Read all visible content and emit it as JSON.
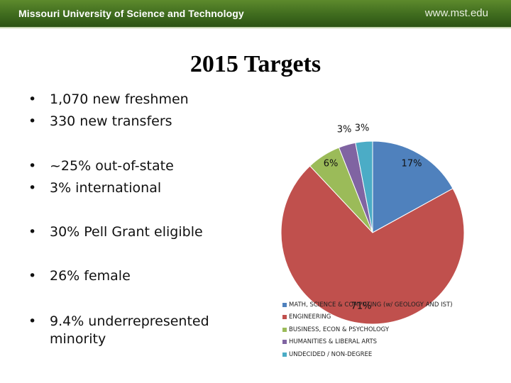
{
  "header": {
    "institution": "Missouri University of Science and Technology",
    "url": "www.mst.edu"
  },
  "slide": {
    "title": "2015 Targets",
    "bullets": [
      "1,070 new freshmen",
      "330 new transfers",
      "~25% out-of-state",
      "3% international",
      "30% Pell Grant eligible",
      "26% female",
      "9.4% underrepresented minority"
    ]
  },
  "chart_data": {
    "type": "pie",
    "title": "",
    "categories": [
      "MATH, SCIENCE & COMPUTING (w/ GEOLOGY AND IST)",
      "ENGINEERING",
      "BUSINESS, ECON & PSYCHOLOGY",
      "HUMANITIES & LIBERAL ARTS",
      "UNDECIDED / NON-DEGREE"
    ],
    "values": [
      17,
      71,
      6,
      3,
      3
    ],
    "data_labels": [
      "17%",
      "71%",
      "6%",
      "3%",
      "3%"
    ],
    "colors": [
      "#4f81bd",
      "#c0504d",
      "#9bbb59",
      "#8064a2",
      "#4bacc6"
    ],
    "start_angle": "12 o'clock",
    "direction": "clockwise",
    "legend_placement": "bottom"
  }
}
